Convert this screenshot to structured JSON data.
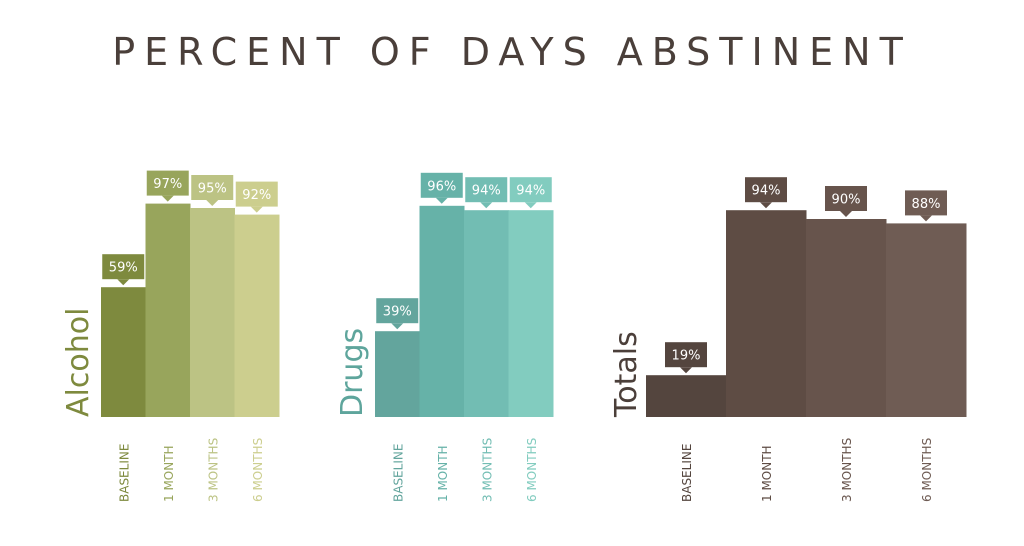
{
  "chart_data": {
    "title": "PERCENT OF DAYS ABSTINENT",
    "type": "bar",
    "ylim": [
      0,
      100
    ],
    "grid": false,
    "panels": [
      {
        "label": "Alcohol",
        "label_color": "#7e8a3e",
        "categories": [
          "BASELINE",
          "1 MONTH",
          "3 MONTHS",
          "6 MONTHS"
        ],
        "values": [
          59,
          97,
          95,
          92
        ],
        "value_labels": [
          "59%",
          "97%",
          "95%",
          "92%"
        ],
        "bar_colors": [
          "#7e8a3e",
          "#98a55c",
          "#bcc384",
          "#ccce8e"
        ]
      },
      {
        "label": "Drugs",
        "label_color": "#5ea59c",
        "categories": [
          "BASELINE",
          "1 MONTH",
          "3 MONTHS",
          "6 MONTHS"
        ],
        "values": [
          39,
          96,
          94,
          94
        ],
        "value_labels": [
          "39%",
          "96%",
          "94%",
          "94%"
        ],
        "bar_colors": [
          "#63a59d",
          "#66b2a8",
          "#72bdb3",
          "#82ccbf"
        ]
      },
      {
        "label": "Totals",
        "label_color": "#4b3f3a",
        "categories": [
          "BASELINE",
          "1 MONTH",
          "3 MONTHS",
          "6 MONTHS"
        ],
        "values": [
          19,
          94,
          90,
          88
        ],
        "value_labels": [
          "19%",
          "94%",
          "90%",
          "88%"
        ],
        "bar_colors": [
          "#54453e",
          "#5e4c44",
          "#67544c",
          "#6f5c54"
        ]
      }
    ]
  }
}
